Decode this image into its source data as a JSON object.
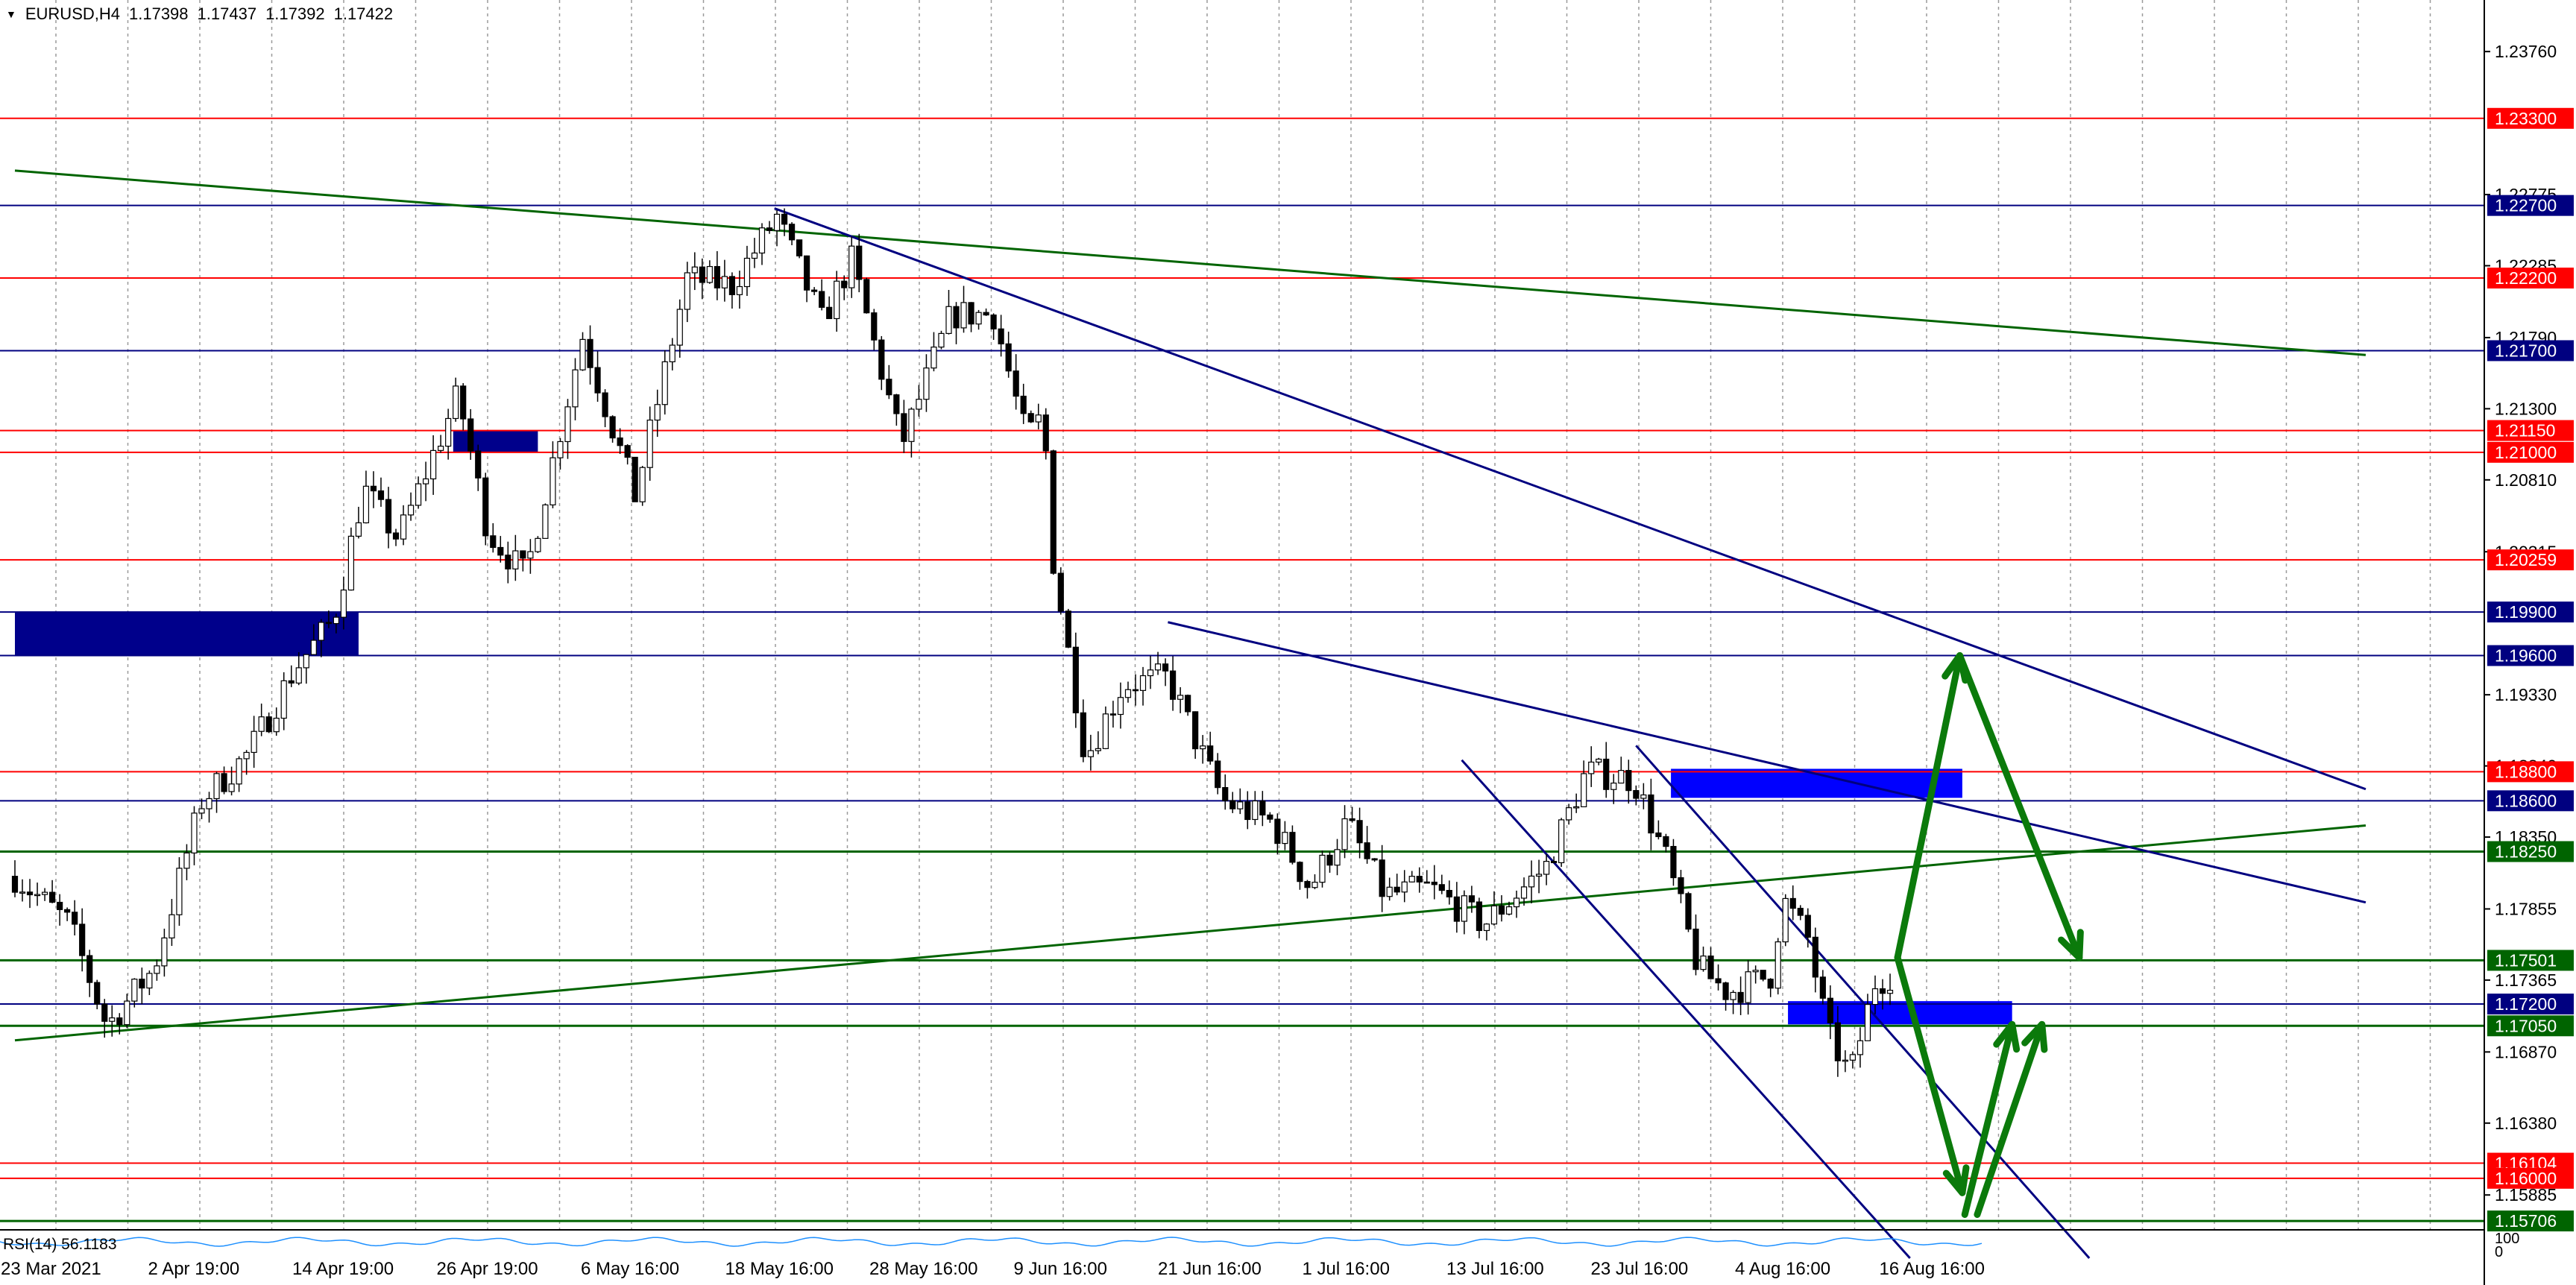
{
  "window": {
    "symbol": "EURUSD,H4",
    "ohlc": [
      "1.17398",
      "1.17437",
      "1.17392",
      "1.17422"
    ],
    "rsi_label": "RSI(14) 56.1183",
    "rsi_max_label": "100",
    "rsi_min_label": "0"
  },
  "colors": {
    "background": "#ffffff",
    "grid": "#9a9a9a",
    "candle": "#000000",
    "support_resistance_red": "#ff0000",
    "support_resistance_blue": "#000080",
    "trend_green": "#006400",
    "zone_blue": "#0000ff",
    "zone_navy": "#00008b",
    "arrow_green": "#0b7a0b",
    "rsi_line": "#1e90ff",
    "label_red_bg": "#ff0000",
    "label_navy_bg": "#000080",
    "label_green_bg": "#006400",
    "label_text": "#ffffff"
  },
  "chart_data": {
    "type": "candlestick",
    "symbol": "EURUSD",
    "timeframe": "H4",
    "ylim": [
      1.1545,
      1.2392
    ],
    "price_ticks": [
      "1.23760",
      "1.22775",
      "1.22285",
      "1.21790",
      "1.21300",
      "1.20810",
      "1.20315",
      "1.19330",
      "1.18840",
      "1.18350",
      "1.17855",
      "1.17365",
      "1.16870",
      "1.16380",
      "1.15885"
    ],
    "time_labels": [
      "23 Mar 2021",
      "2 Apr 19:00",
      "14 Apr 19:00",
      "26 Apr 19:00",
      "6 May 16:00",
      "18 May 16:00",
      "28 May 16:00",
      "9 Jun 16:00",
      "21 Jun 16:00",
      "1 Jul 16:00",
      "13 Jul 16:00",
      "23 Jul 16:00",
      "4 Aug 16:00",
      "16 Aug 16:00"
    ],
    "horizontal_levels": [
      {
        "price": 1.233,
        "label": "1.23300",
        "color": "red"
      },
      {
        "price": 1.227,
        "label": "1.22700",
        "color": "navy"
      },
      {
        "price": 1.222,
        "label": "1.22200",
        "color": "red"
      },
      {
        "price": 1.217,
        "label": "1.21700",
        "color": "navy"
      },
      {
        "price": 1.2115,
        "label": "1.21150",
        "color": "red"
      },
      {
        "price": 1.21,
        "label": "1.21000",
        "color": "red"
      },
      {
        "price": 1.20259,
        "label": "1.20259",
        "color": "red"
      },
      {
        "price": 1.199,
        "label": "1.19900",
        "color": "navy"
      },
      {
        "price": 1.196,
        "label": "1.19600",
        "color": "navy"
      },
      {
        "price": 1.188,
        "label": "1.18800",
        "color": "red"
      },
      {
        "price": 1.186,
        "label": "1.18600",
        "color": "navy"
      },
      {
        "price": 1.1825,
        "label": "1.18250",
        "color": "green"
      },
      {
        "price": 1.17501,
        "label": "1.17501",
        "color": "green"
      },
      {
        "price": 1.172,
        "label": "1.17200",
        "color": "navy"
      },
      {
        "price": 1.1705,
        "label": "1.17050",
        "color": "green"
      },
      {
        "price": 1.16104,
        "label": "1.16104",
        "color": "red"
      },
      {
        "price": 1.16,
        "label": "1.16000",
        "color": "red"
      },
      {
        "price": 1.15706,
        "label": "1.15706",
        "color": "green"
      }
    ],
    "zones": [
      {
        "t0": 0,
        "t1": 13.8,
        "p0": 1.196,
        "p1": 1.199,
        "color": "navy"
      },
      {
        "t0": 17.6,
        "t1": 21.0,
        "p0": 1.21,
        "p1": 1.2115,
        "color": "navy"
      },
      {
        "t0": 66.5,
        "t1": 78.2,
        "p0": 1.1862,
        "p1": 1.1882,
        "color": "blue"
      },
      {
        "t0": 71.2,
        "t1": 80.2,
        "p0": 1.1706,
        "p1": 1.1722,
        "color": "blue"
      }
    ],
    "trendlines": [
      {
        "t0": 0,
        "p0": 1.2294,
        "t1": 94.4,
        "p1": 1.2167,
        "color": "green"
      },
      {
        "t0": 0,
        "p0": 1.1695,
        "t1": 94.4,
        "p1": 1.1843,
        "color": "green"
      },
      {
        "t0": 30.5,
        "p0": 1.2268,
        "t1": 94.4,
        "p1": 1.1868,
        "color": "navy"
      },
      {
        "t0": 46.3,
        "p0": 1.1983,
        "t1": 94.4,
        "p1": 1.179,
        "color": "navy"
      },
      {
        "t0": 58.1,
        "p0": 1.1888,
        "t1": 76.1,
        "p1": 1.1545,
        "color": "navy"
      },
      {
        "t0": 65.1,
        "p0": 1.1898,
        "t1": 83.3,
        "p1": 1.1545,
        "color": "navy"
      }
    ],
    "arrows": [
      {
        "t0": 75.6,
        "p0": 1.1752,
        "t1": 78.1,
        "p1": 1.196
      },
      {
        "t0": 78.1,
        "p0": 1.196,
        "t1": 82.9,
        "p1": 1.1752
      },
      {
        "t0": 75.6,
        "p0": 1.1752,
        "t1": 78.2,
        "p1": 1.159
      },
      {
        "t0": 78.3,
        "p0": 1.1575,
        "t1": 80.2,
        "p1": 1.1706
      },
      {
        "t0": 78.8,
        "p0": 1.1575,
        "t1": 81.4,
        "p1": 1.1706
      }
    ],
    "series_anchors": [
      {
        "t": 0.0,
        "p": 1.1808
      },
      {
        "t": 2.2,
        "p": 1.1775
      },
      {
        "t": 3.7,
        "p": 1.1705
      },
      {
        "t": 5.6,
        "p": 1.1745
      },
      {
        "t": 7.5,
        "p": 1.186
      },
      {
        "t": 9.4,
        "p": 1.1893
      },
      {
        "t": 11.2,
        "p": 1.195
      },
      {
        "t": 12.8,
        "p": 1.1985
      },
      {
        "t": 14.0,
        "p": 1.2075
      },
      {
        "t": 15.4,
        "p": 1.204
      },
      {
        "t": 17.8,
        "p": 1.214
      },
      {
        "t": 19.0,
        "p": 1.2045
      },
      {
        "t": 20.5,
        "p": 1.2015
      },
      {
        "t": 22.8,
        "p": 1.218
      },
      {
        "t": 24.9,
        "p": 1.207
      },
      {
        "t": 27.0,
        "p": 1.222
      },
      {
        "t": 28.8,
        "p": 1.2215
      },
      {
        "t": 30.6,
        "p": 1.2262
      },
      {
        "t": 32.4,
        "p": 1.219
      },
      {
        "t": 33.6,
        "p": 1.2232
      },
      {
        "t": 35.6,
        "p": 1.2105
      },
      {
        "t": 37.6,
        "p": 1.2195
      },
      {
        "t": 39.3,
        "p": 1.2195
      },
      {
        "t": 40.6,
        "p": 1.211
      },
      {
        "t": 41.3,
        "p": 1.2125
      },
      {
        "t": 41.7,
        "p": 1.2025
      },
      {
        "t": 43.0,
        "p": 1.189
      },
      {
        "t": 44.5,
        "p": 1.194
      },
      {
        "t": 46.3,
        "p": 1.1945
      },
      {
        "t": 48.5,
        "p": 1.186
      },
      {
        "t": 50.5,
        "p": 1.1845
      },
      {
        "t": 52.0,
        "p": 1.18
      },
      {
        "t": 53.5,
        "p": 1.1845
      },
      {
        "t": 55.0,
        "p": 1.1795
      },
      {
        "t": 56.8,
        "p": 1.18
      },
      {
        "t": 59.0,
        "p": 1.1775
      },
      {
        "t": 61.5,
        "p": 1.1815
      },
      {
        "t": 63.1,
        "p": 1.188
      },
      {
        "t": 65.0,
        "p": 1.1875
      },
      {
        "t": 66.3,
        "p": 1.182
      },
      {
        "t": 67.6,
        "p": 1.1745
      },
      {
        "t": 68.8,
        "p": 1.1728
      },
      {
        "t": 70.5,
        "p": 1.174
      },
      {
        "t": 71.0,
        "p": 1.1792
      },
      {
        "t": 72.0,
        "p": 1.1765
      },
      {
        "t": 72.8,
        "p": 1.17
      },
      {
        "t": 73.7,
        "p": 1.167
      },
      {
        "t": 74.7,
        "p": 1.1735
      },
      {
        "t": 75.5,
        "p": 1.1742
      }
    ]
  }
}
